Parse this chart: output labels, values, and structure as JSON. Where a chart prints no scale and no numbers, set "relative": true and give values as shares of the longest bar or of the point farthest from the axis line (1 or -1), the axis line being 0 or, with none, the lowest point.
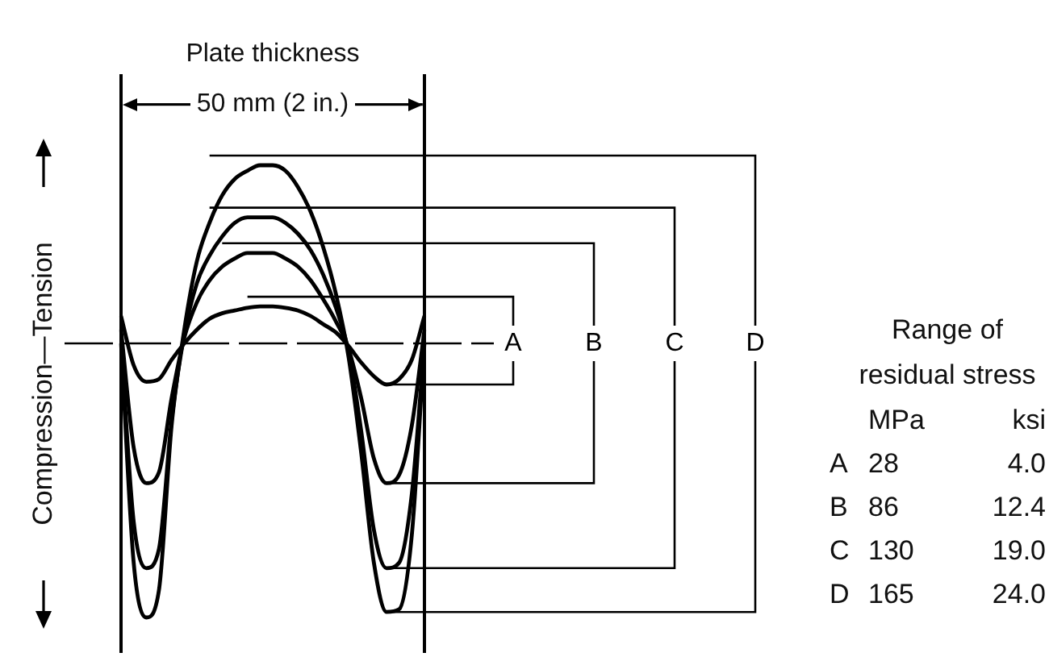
{
  "chart_data": {
    "type": "line",
    "relative": true,
    "title": "Plate thickness",
    "ylabel": "Compression—Tension",
    "legend": false,
    "marker": "none",
    "line_style": "solid",
    "categories": [
      null,
      null,
      null,
      null,
      null,
      null,
      null,
      null,
      null,
      null,
      null,
      null,
      null,
      null,
      null,
      null,
      null,
      null,
      null,
      null,
      null,
      null,
      null,
      null,
      null
    ],
    "series": [
      {
        "name": "A",
        "color": "#000000",
        "values": [
          0.1,
          -0.08,
          -0.14,
          -0.13,
          -0.06,
          0.0,
          0.05,
          0.09,
          0.11,
          0.12,
          0.13,
          0.135,
          0.135,
          0.13,
          0.12,
          0.1,
          0.07,
          0.04,
          -0.01,
          -0.07,
          -0.12,
          -0.15,
          -0.13,
          -0.06,
          0.1
        ]
      },
      {
        "name": "B",
        "color": "#000000",
        "values": [
          0.05,
          -0.38,
          -0.51,
          -0.47,
          -0.2,
          0.02,
          0.15,
          0.23,
          0.28,
          0.31,
          0.33,
          0.33,
          0.33,
          0.31,
          0.28,
          0.23,
          0.16,
          0.08,
          -0.02,
          -0.2,
          -0.42,
          -0.51,
          -0.48,
          -0.3,
          0.05
        ]
      },
      {
        "name": "C",
        "color": "#000000",
        "values": [
          0.0,
          -0.65,
          -0.82,
          -0.75,
          -0.28,
          0.03,
          0.22,
          0.32,
          0.39,
          0.44,
          0.46,
          0.46,
          0.46,
          0.44,
          0.4,
          0.34,
          0.25,
          0.13,
          -0.03,
          -0.32,
          -0.68,
          -0.82,
          -0.8,
          -0.55,
          0.0
        ]
      },
      {
        "name": "D",
        "color": "#000000",
        "values": [
          0.0,
          -0.8,
          -1.0,
          -0.9,
          -0.3,
          0.05,
          0.3,
          0.44,
          0.54,
          0.6,
          0.63,
          0.65,
          0.65,
          0.63,
          0.57,
          0.48,
          0.35,
          0.18,
          -0.05,
          -0.4,
          -0.8,
          -0.98,
          -0.97,
          -0.7,
          0.0
        ]
      }
    ],
    "ref_lines": [
      {
        "axis": "y",
        "value": 0,
        "line_style": "dashed"
      }
    ],
    "annotations": [
      "50 mm (2 in.)",
      "Range of residual stress",
      "MPa",
      "ksi",
      "A",
      "28",
      "4.0",
      "B",
      "86",
      "12.4",
      "C",
      "130",
      "19.0",
      "D",
      "165",
      "24.0"
    ]
  }
}
